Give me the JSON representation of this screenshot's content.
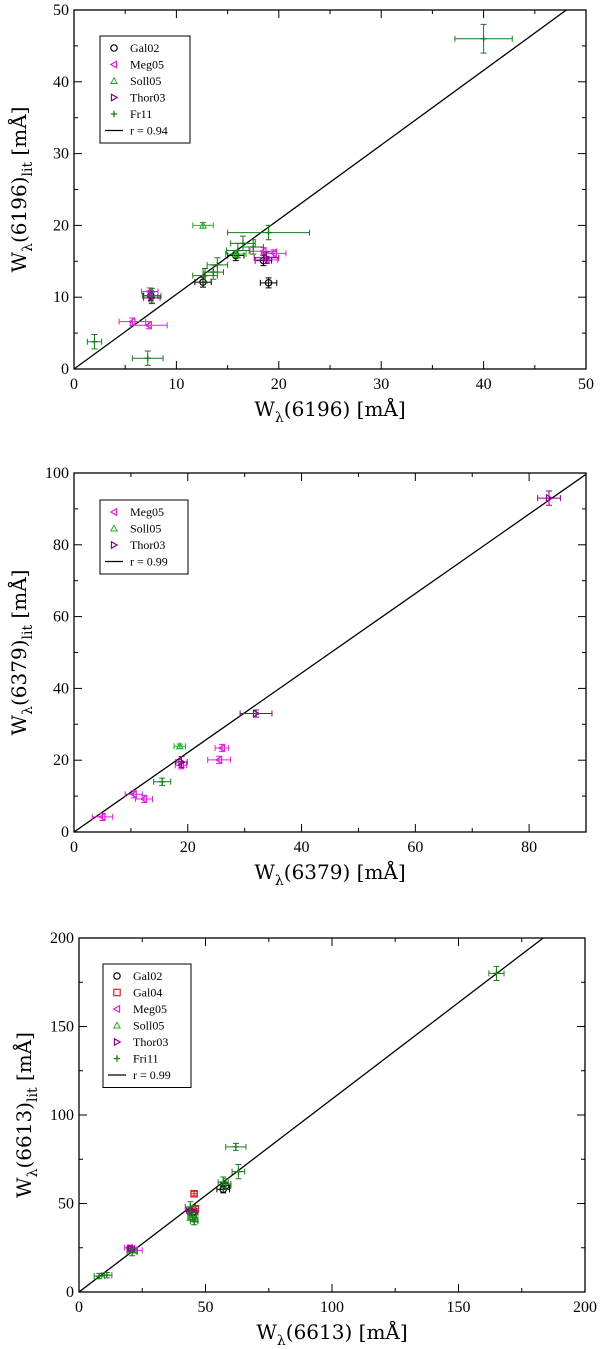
{
  "colors": {
    "Gal02": "#000000",
    "Gal04": "#e02020",
    "Meg05": "#e020e0",
    "Soll05": "#20b020",
    "Thor03": "#8b008b",
    "Fri11": "#1a7a1a",
    "fit": "#000000"
  },
  "chart_data": [
    {
      "type": "scatter",
      "title": "",
      "xlabel_main": "W",
      "xlabel_sub": "λ",
      "xlabel_rest": "(6196) [mÅ]",
      "ylabel_main": "W",
      "ylabel_sub": "λ",
      "ylabel_paren": "(6196)",
      "ylabel_sub2": "lit",
      "ylabel_rest": " [mÅ]",
      "xlim": [
        0,
        50
      ],
      "ylim": [
        0,
        50
      ],
      "xticks": [
        0,
        10,
        20,
        30,
        40,
        50
      ],
      "yticks": [
        0,
        10,
        20,
        30,
        40,
        50
      ],
      "minor": 5,
      "fit": {
        "label": "r = 0.94",
        "slope": 1.04,
        "intercept": 0
      },
      "legend": [
        "Gal02",
        "Meg05",
        "Soll05",
        "Thor03",
        "Fr11",
        "r = 0.94"
      ],
      "series": [
        {
          "name": "Gal02",
          "key": "Gal02",
          "marker": "circle",
          "points": [
            [
              12.6,
              12.1,
              0.8,
              0.7
            ],
            [
              18.5,
              15.1,
              0.8,
              0.7
            ],
            [
              19.0,
              12.0,
              0.8,
              0.7
            ],
            [
              7.5,
              10.2,
              0.7,
              0.7
            ],
            [
              15.8,
              15.8,
              0.8,
              0.7
            ]
          ]
        },
        {
          "name": "Meg05",
          "key": "Meg05",
          "marker": "tri-left",
          "points": [
            [
              5.7,
              6.6,
              1.3,
              0.5
            ],
            [
              7.3,
              6.1,
              1.8,
              0.5
            ],
            [
              7.4,
              10.8,
              0.8,
              0.5
            ],
            [
              18.5,
              16.4,
              1.3,
              0.5
            ],
            [
              18.8,
              15.2,
              1.1,
              0.5
            ],
            [
              19.5,
              16.1,
              1.2,
              0.5
            ]
          ]
        },
        {
          "name": "Soll05",
          "key": "Soll05",
          "marker": "triangle",
          "points": [
            [
              12.6,
              20.0,
              1.0,
              0.4
            ],
            [
              15.8,
              16.0,
              1.0,
              0.4
            ]
          ]
        },
        {
          "name": "Thor03",
          "key": "Thor03",
          "marker": "tri-right",
          "points": [
            [
              7.6,
              9.9,
              0.8,
              0.8
            ],
            [
              18.8,
              15.5,
              1.2,
              0.8
            ]
          ]
        },
        {
          "name": "Fr11",
          "key": "Fri11",
          "marker": "plus",
          "points": [
            [
              2.0,
              3.8,
              0.7,
              1.0
            ],
            [
              7.2,
              1.5,
              1.5,
              1.0
            ],
            [
              7.6,
              10.2,
              0.9,
              1.0
            ],
            [
              12.8,
              13.0,
              1.2,
              1.0
            ],
            [
              14.0,
              14.5,
              1.0,
              1.0
            ],
            [
              13.6,
              13.5,
              1.0,
              1.0
            ],
            [
              16.0,
              16.5,
              1.1,
              1.0
            ],
            [
              16.5,
              17.5,
              1.2,
              1.0
            ],
            [
              17.5,
              17.0,
              1.0,
              1.0
            ],
            [
              19.0,
              19.0,
              4.0,
              1.0
            ],
            [
              40.0,
              46.0,
              2.8,
              2.0
            ]
          ]
        }
      ]
    },
    {
      "type": "scatter",
      "title": "",
      "xlabel_main": "W",
      "xlabel_sub": "λ",
      "xlabel_rest": "(6379) [mÅ]",
      "ylabel_main": "W",
      "ylabel_sub": "λ",
      "ylabel_paren": "(6379)",
      "ylabel_sub2": "lit",
      "ylabel_rest": " [mÅ]",
      "xlim": [
        0,
        90
      ],
      "ylim": [
        0,
        100
      ],
      "xticks": [
        0,
        20,
        40,
        60,
        80
      ],
      "yticks": [
        0,
        20,
        40,
        60,
        80,
        100
      ],
      "minor": 10,
      "fit": {
        "label": "r = 0.99",
        "slope": 1.107,
        "intercept": 0
      },
      "legend": [
        "Meg05",
        "Soll05",
        "Thor03",
        "r = 0.99"
      ],
      "series": [
        {
          "name": "Meg05",
          "key": "Meg05",
          "marker": "tri-left",
          "points": [
            [
              5.0,
              4.2,
              1.8,
              1.0
            ],
            [
              10.5,
              10.5,
              1.5,
              1.0
            ],
            [
              12.3,
              9.2,
              1.5,
              1.0
            ],
            [
              18.8,
              18.6,
              1.0,
              1.0
            ],
            [
              25.5,
              20.1,
              2.0,
              1.0
            ],
            [
              26.0,
              23.4,
              1.2,
              1.0
            ]
          ]
        },
        {
          "name": "Soll05",
          "key": "Soll05",
          "marker": "triangle",
          "points": [
            [
              18.6,
              23.9,
              1.0,
              0.6
            ]
          ]
        },
        {
          "name": "Thor03",
          "key": "Thor03",
          "marker": "tri-right",
          "points": [
            [
              18.9,
              19.5,
              1.0,
              1.5
            ],
            [
              32.0,
              33.0,
              2.8,
              1.0
            ],
            [
              83.5,
              93.0,
              2.0,
              2.0
            ]
          ]
        },
        {
          "name": "Fri11",
          "key": "Fri11",
          "marker": "plus",
          "points": [
            [
              15.5,
              14.0,
              1.5,
              1.0
            ]
          ]
        }
      ]
    },
    {
      "type": "scatter",
      "title": "",
      "xlabel_main": "W",
      "xlabel_sub": "λ",
      "xlabel_rest": "(6613) [mÅ]",
      "ylabel_main": "W",
      "ylabel_sub": "λ",
      "ylabel_paren": "(6613)",
      "ylabel_sub2": "lit",
      "ylabel_rest": " [mÅ]",
      "xlim": [
        0,
        200
      ],
      "ylim": [
        0,
        200
      ],
      "xticks": [
        0,
        50,
        100,
        150,
        200
      ],
      "yticks": [
        0,
        50,
        100,
        150,
        200
      ],
      "minor": 25,
      "fit": {
        "label": "r = 0.99",
        "slope": 1.09,
        "intercept": 0
      },
      "legend": [
        "Gal02",
        "Gal04",
        "Meg05",
        "Soll05",
        "Thor03",
        "Fri11",
        "r = 0.99"
      ],
      "series": [
        {
          "name": "Gal02",
          "key": "Gal02",
          "marker": "circle",
          "points": [
            [
              45.0,
              45.0,
              2.0,
              2.0
            ],
            [
              57.0,
              58.0,
              2.5,
              2.0
            ],
            [
              58.0,
              60.0,
              2.0,
              2.0
            ]
          ]
        },
        {
          "name": "Gal04",
          "key": "Gal04",
          "marker": "square",
          "points": [
            [
              45.5,
              55.5,
              1.2,
              1.2
            ],
            [
              46.0,
              47.0,
              1.2,
              1.2
            ]
          ]
        },
        {
          "name": "Meg05",
          "key": "Meg05",
          "marker": "tri-left",
          "points": [
            [
              20.0,
              25.0,
              2.0,
              1.5
            ],
            [
              22.0,
              23.5,
              3.0,
              1.5
            ],
            [
              21.0,
              24.0,
              2.0,
              1.5
            ]
          ]
        },
        {
          "name": "Soll05",
          "key": "Soll05",
          "marker": "triangle",
          "points": [
            [
              44.0,
              42.0,
              1.0,
              1.0
            ],
            [
              46.0,
              41.0,
              1.0,
              1.0
            ]
          ]
        },
        {
          "name": "Thor03",
          "key": "Thor03",
          "marker": "tri-right",
          "points": [
            [
              20.5,
              24.5,
              1.5,
              1.5
            ],
            [
              44.5,
              46.0,
              2.0,
              2.0
            ]
          ]
        },
        {
          "name": "Fri11",
          "key": "Fri11",
          "marker": "plus",
          "points": [
            [
              8.0,
              9.0,
              2.0,
              1.5
            ],
            [
              11.0,
              9.5,
              2.0,
              1.5
            ],
            [
              21.0,
              22.5,
              2.0,
              2.0
            ],
            [
              44.0,
              48.0,
              2.0,
              3.0
            ],
            [
              45.0,
              43.0,
              1.5,
              2.0
            ],
            [
              45.5,
              40.0,
              1.5,
              2.0
            ],
            [
              57.0,
              62.0,
              2.0,
              3.0
            ],
            [
              58.0,
              61.0,
              2.0,
              3.0
            ],
            [
              62.0,
              82.0,
              4.0,
              2.0
            ],
            [
              63.0,
              68.0,
              2.5,
              4.0
            ],
            [
              165.0,
              180.0,
              3.0,
              4.0
            ]
          ]
        }
      ]
    }
  ]
}
